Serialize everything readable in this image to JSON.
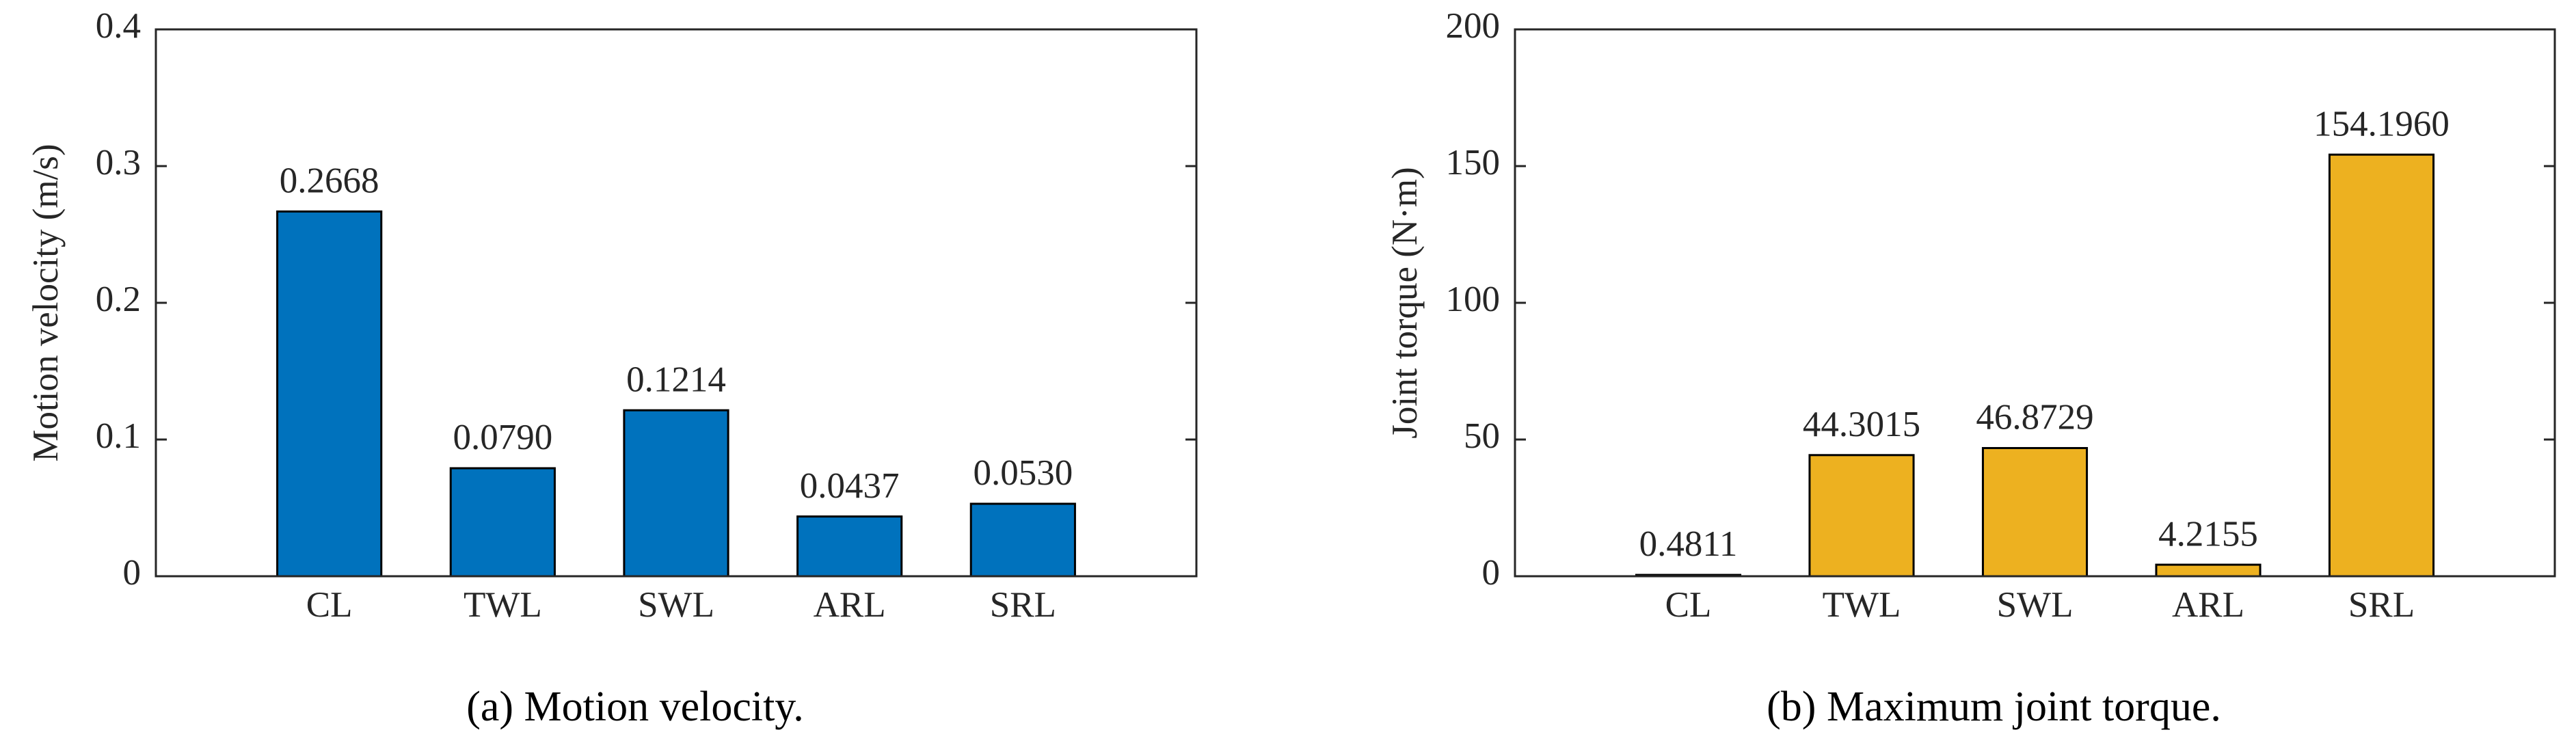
{
  "chart_data": [
    {
      "type": "bar",
      "ylabel": "Motion velocity (m/s)",
      "caption": "(a) Motion velocity.",
      "categories": [
        "CL",
        "TWL",
        "SWL",
        "ARL",
        "SRL"
      ],
      "values": [
        0.2668,
        0.079,
        0.1214,
        0.0437,
        0.053
      ],
      "value_labels": [
        "0.2668",
        "0.0790",
        "0.1214",
        "0.0437",
        "0.0530"
      ],
      "color": "#0072bd",
      "ylim": [
        0,
        0.4
      ],
      "yticks": [
        0,
        0.1,
        0.2,
        0.3,
        0.4
      ]
    },
    {
      "type": "bar",
      "ylabel": "Joint torque (N·m)",
      "caption": "(b) Maximum joint torque.",
      "categories": [
        "CL",
        "TWL",
        "SWL",
        "ARL",
        "SRL"
      ],
      "values": [
        0.4811,
        44.3015,
        46.8729,
        4.2155,
        154.196
      ],
      "value_labels": [
        "0.4811",
        "44.3015",
        "46.8729",
        "4.2155",
        "154.1960"
      ],
      "color": "#edb120",
      "ylim": [
        0,
        200
      ],
      "yticks": [
        0,
        50,
        100,
        150,
        200
      ]
    }
  ]
}
